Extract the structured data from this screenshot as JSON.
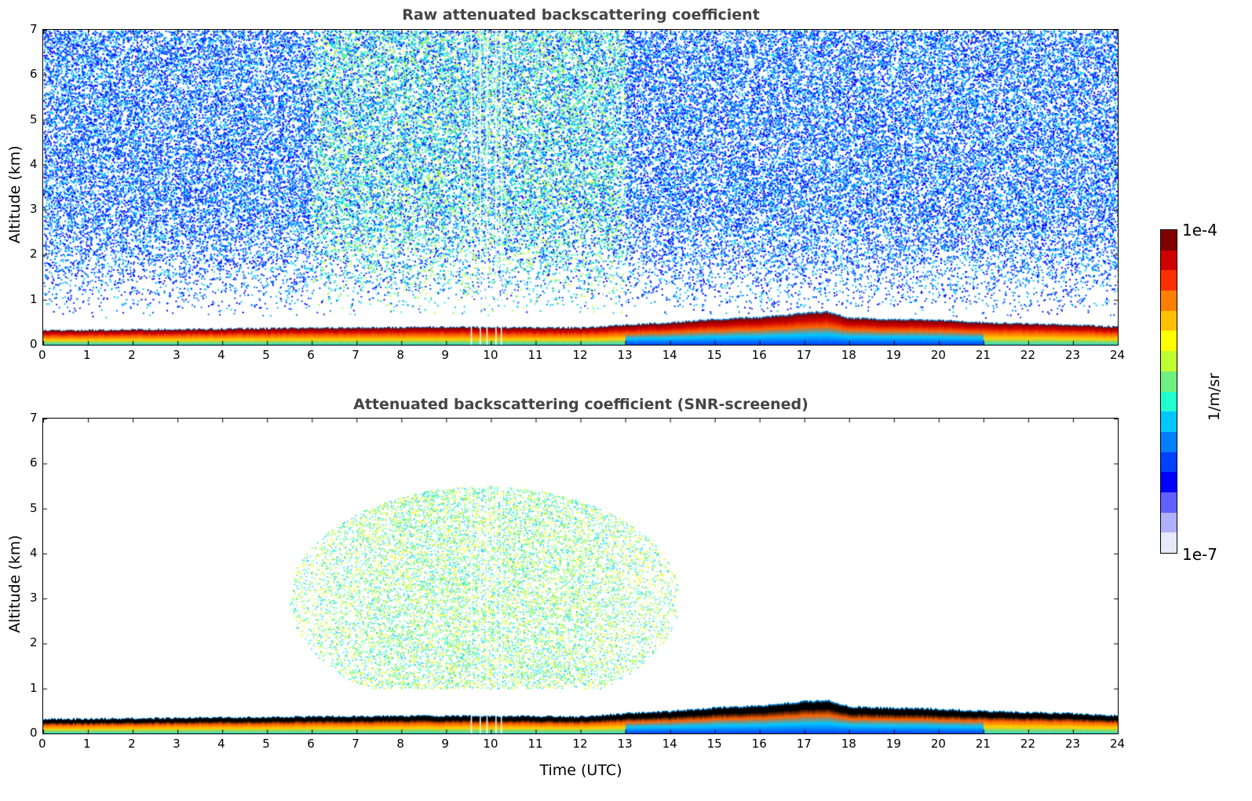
{
  "colorbar": {
    "max_label": "1e-4",
    "min_label": "1e-7",
    "unit_label": "1/m/sr",
    "colors": [
      "#e8e8f8",
      "#b0b0ff",
      "#6060ff",
      "#0000ff",
      "#0040ff",
      "#0080ff",
      "#00c8ff",
      "#20ffd0",
      "#70f080",
      "#c0ff30",
      "#ffff00",
      "#ffc000",
      "#ff8000",
      "#ff3000",
      "#d00000",
      "#800000"
    ]
  },
  "xlabel": "Time (UTC)",
  "chart_data": [
    {
      "type": "heatmap",
      "title": "Raw attenuated backscattering coefficient",
      "xlabel": "",
      "ylabel": "Altitude (km)",
      "xlim": [
        0,
        24
      ],
      "ylim": [
        0,
        7
      ],
      "xticks": [
        0,
        1,
        2,
        3,
        4,
        5,
        6,
        7,
        8,
        9,
        10,
        11,
        12,
        13,
        14,
        15,
        16,
        17,
        18,
        19,
        20,
        21,
        22,
        23,
        24
      ],
      "yticks": [
        0,
        1,
        2,
        3,
        4,
        5,
        6,
        7
      ],
      "color_scale": {
        "min": 1e-07,
        "max": 0.0001,
        "log": true
      },
      "boundary_layer_top_km": {
        "time": [
          0,
          3,
          6,
          9,
          12,
          13,
          14,
          15,
          16,
          17,
          17.5,
          18,
          20,
          21,
          23,
          24
        ],
        "altitude": [
          0.32,
          0.35,
          0.38,
          0.4,
          0.38,
          0.45,
          0.5,
          0.58,
          0.62,
          0.72,
          0.75,
          0.6,
          0.55,
          0.5,
          0.45,
          0.4
        ]
      },
      "noise": "full"
    },
    {
      "type": "heatmap",
      "title": "Attenuated backscattering coefficient (SNR-screened)",
      "xlabel": "Time (UTC)",
      "ylabel": "Altitude (km)",
      "xlim": [
        0,
        24
      ],
      "ylim": [
        0,
        7
      ],
      "xticks": [
        0,
        1,
        2,
        3,
        4,
        5,
        6,
        7,
        8,
        9,
        10,
        11,
        12,
        13,
        14,
        15,
        16,
        17,
        18,
        19,
        20,
        21,
        22,
        23,
        24
      ],
      "yticks": [
        0,
        1,
        2,
        3,
        4,
        5,
        6,
        7
      ],
      "color_scale": {
        "min": 1e-07,
        "max": 0.0001,
        "log": true
      },
      "boundary_layer_top_km": {
        "time": [
          0,
          3,
          6,
          9,
          12,
          13,
          14,
          15,
          16,
          17,
          17.5,
          18,
          20,
          21,
          23,
          24
        ],
        "altitude": [
          0.32,
          0.35,
          0.38,
          0.4,
          0.38,
          0.45,
          0.5,
          0.58,
          0.62,
          0.72,
          0.75,
          0.6,
          0.55,
          0.5,
          0.45,
          0.4
        ]
      },
      "aerosol_layer": {
        "time_range": [
          5.5,
          14.2
        ],
        "altitude_range_km": [
          1.0,
          6.0
        ]
      },
      "noise": "screened"
    }
  ]
}
